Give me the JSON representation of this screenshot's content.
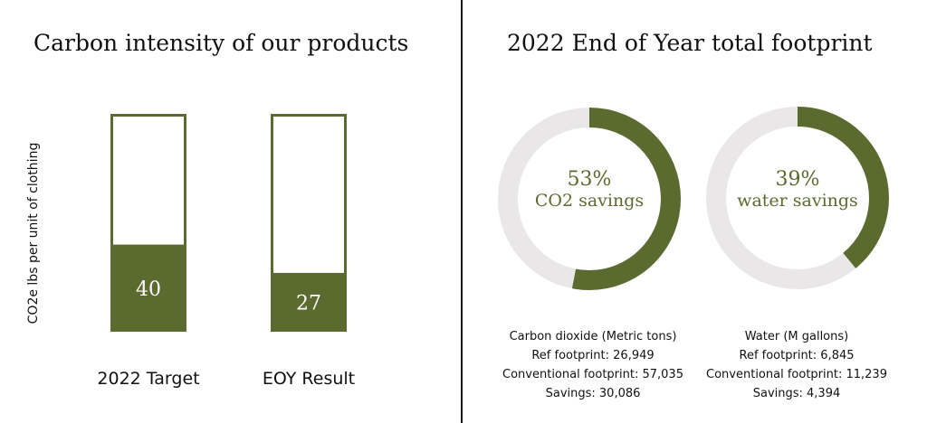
{
  "chart_data": [
    {
      "type": "bar",
      "title": "Carbon intensity of our products",
      "ylabel": "CO2e lbs per unit of clothing",
      "categories": [
        "2022 Target",
        "EOY Result"
      ],
      "values": [
        40,
        27
      ],
      "ylim": [
        0,
        100
      ],
      "grid": false,
      "color": "#5b6a2f"
    },
    {
      "type": "pie",
      "title": "2022 End of Year total footprint",
      "series": [
        {
          "percent_label": "53%",
          "caption": "CO2 savings",
          "value": 53,
          "stats_title": "Carbon dioxide (Metric tons)",
          "stats": [
            "Ref footprint: 26,949",
            "Conventional footprint: 57,035",
            "Savings: 30,086"
          ]
        },
        {
          "percent_label": "39%",
          "caption": "water savings",
          "value": 39,
          "stats_title": "Water (M gallons)",
          "stats": [
            "Ref footprint: 6,845",
            "Conventional footprint: 11,239",
            "Savings: 4,394"
          ]
        }
      ],
      "colors": {
        "fill": "#5b6a2f",
        "track": "#e9e7e8"
      }
    }
  ]
}
